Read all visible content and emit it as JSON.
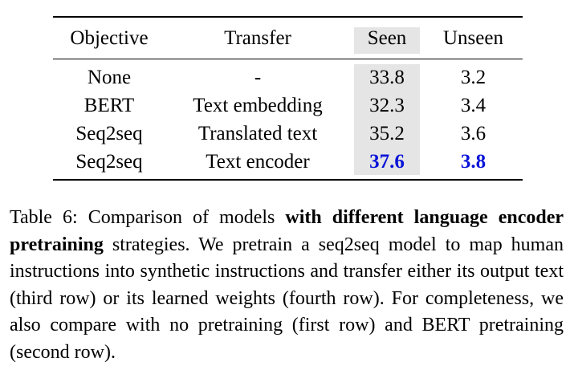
{
  "table": {
    "headers": [
      "Objective",
      "Transfer",
      "Seen",
      "Unseen"
    ],
    "rows": [
      {
        "objective": "None",
        "transfer": "-",
        "seen": "33.8",
        "unseen": "3.2"
      },
      {
        "objective": "BERT",
        "transfer": "Text embedding",
        "seen": "32.3",
        "unseen": "3.4"
      },
      {
        "objective": "Seq2seq",
        "transfer": "Translated text",
        "seen": "35.2",
        "unseen": "3.6"
      },
      {
        "objective": "Seq2seq",
        "transfer": "Text encoder",
        "seen": "37.6",
        "unseen": "3.8"
      }
    ],
    "highlight_color": "#0a14d8",
    "shade_color": "#e5e5e5"
  },
  "caption": {
    "label": "Table 6:",
    "lead": "Comparison of models",
    "bold": "with different language encoder pretraining",
    "text": "strategies. We pretrain a seq2seq model to map human instructions into synthetic instructions and transfer either its output text (third row) or its learned weights (fourth row). For completeness, we also compare with no pretraining (first row) and BERT pretraining (second row)."
  }
}
